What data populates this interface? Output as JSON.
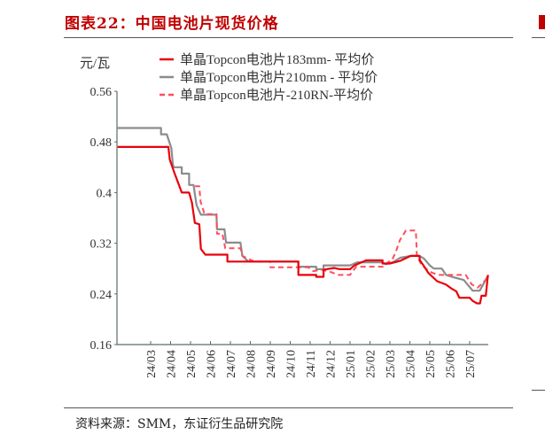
{
  "header": {
    "title": "图表22：中国电池片现货价格"
  },
  "footer": {
    "source": "资料来源：SMM，东证衍生品研究院"
  },
  "chart_data": {
    "type": "line",
    "title": "中国电池片现货价格",
    "ylabel": "元/瓦",
    "xlabel": "",
    "ylim": [
      0.16,
      0.56
    ],
    "yticks": [
      "0.56",
      "0.48",
      "0.4",
      "0.32",
      "0.24",
      "0.16"
    ],
    "ytick_values": [
      0.56,
      0.48,
      0.4,
      0.32,
      0.24,
      0.16
    ],
    "xticks": [
      "24/03",
      "24/04",
      "24/05",
      "24/06",
      "24/07",
      "24/08",
      "24/09",
      "24/10",
      "24/11",
      "24/12",
      "25/01",
      "25/02",
      "25/03",
      "25/04",
      "25/05",
      "25/06",
      "25/07"
    ],
    "xlim": [
      -1.7,
      16.95
    ],
    "x_note": "x values are month index, 0 = 24/03",
    "grid": false,
    "legend_position": "top",
    "series": [
      {
        "name": "单晶Topcon电池片183mm- 平均价",
        "color": "#e8000b",
        "style": "solid",
        "points": [
          [
            -1.66,
            0.472
          ],
          [
            0.89,
            0.472
          ],
          [
            0.96,
            0.452
          ],
          [
            1.19,
            0.431
          ],
          [
            1.41,
            0.413
          ],
          [
            1.56,
            0.4
          ],
          [
            1.93,
            0.4
          ],
          [
            2.07,
            0.384
          ],
          [
            2.22,
            0.352
          ],
          [
            2.44,
            0.35
          ],
          [
            2.52,
            0.311
          ],
          [
            2.74,
            0.302
          ],
          [
            3.85,
            0.302
          ],
          [
            3.85,
            0.291
          ],
          [
            7.41,
            0.291
          ],
          [
            7.41,
            0.27
          ],
          [
            8.3,
            0.27
          ],
          [
            8.3,
            0.267
          ],
          [
            8.67,
            0.267
          ],
          [
            8.67,
            0.278
          ],
          [
            9.19,
            0.281
          ],
          [
            9.48,
            0.279
          ],
          [
            10.0,
            0.279
          ],
          [
            10.22,
            0.285
          ],
          [
            10.81,
            0.293
          ],
          [
            11.63,
            0.293
          ],
          [
            11.63,
            0.288
          ],
          [
            12.0,
            0.288
          ],
          [
            12.5,
            0.292
          ],
          [
            13.04,
            0.3
          ],
          [
            13.48,
            0.3
          ],
          [
            13.5,
            0.293
          ],
          [
            13.7,
            0.284
          ],
          [
            13.93,
            0.273
          ],
          [
            14.37,
            0.26
          ],
          [
            14.8,
            0.255
          ],
          [
            15.11,
            0.248
          ],
          [
            15.33,
            0.244
          ],
          [
            15.48,
            0.234
          ],
          [
            16.0,
            0.234
          ],
          [
            16.15,
            0.229
          ],
          [
            16.37,
            0.225
          ],
          [
            16.52,
            0.225
          ],
          [
            16.59,
            0.237
          ],
          [
            16.81,
            0.237
          ],
          [
            16.89,
            0.262
          ],
          [
            16.92,
            0.27
          ]
        ]
      },
      {
        "name": "单晶Topcon电池片210mm - 平均价",
        "color": "#8c8c8c",
        "style": "solid",
        "points": [
          [
            -1.66,
            0.502
          ],
          [
            0.52,
            0.502
          ],
          [
            0.52,
            0.492
          ],
          [
            0.81,
            0.492
          ],
          [
            1.04,
            0.47
          ],
          [
            1.11,
            0.445
          ],
          [
            1.15,
            0.44
          ],
          [
            1.56,
            0.44
          ],
          [
            1.56,
            0.43
          ],
          [
            1.93,
            0.43
          ],
          [
            1.93,
            0.412
          ],
          [
            2.15,
            0.412
          ],
          [
            2.3,
            0.38
          ],
          [
            2.52,
            0.365
          ],
          [
            3.3,
            0.365
          ],
          [
            3.33,
            0.342
          ],
          [
            3.7,
            0.342
          ],
          [
            3.78,
            0.321
          ],
          [
            4.5,
            0.321
          ],
          [
            4.6,
            0.3
          ],
          [
            4.9,
            0.291
          ],
          [
            7.41,
            0.291
          ],
          [
            7.41,
            0.283
          ],
          [
            8.3,
            0.283
          ],
          [
            8.3,
            0.279
          ],
          [
            8.67,
            0.279
          ],
          [
            8.67,
            0.285
          ],
          [
            10.0,
            0.285
          ],
          [
            10.37,
            0.29
          ],
          [
            11.6,
            0.29
          ],
          [
            11.8,
            0.287
          ],
          [
            12.15,
            0.29
          ],
          [
            12.52,
            0.297
          ],
          [
            13.04,
            0.3
          ],
          [
            13.48,
            0.3
          ],
          [
            13.7,
            0.296
          ],
          [
            14.0,
            0.285
          ],
          [
            14.2,
            0.28
          ],
          [
            14.6,
            0.28
          ],
          [
            14.82,
            0.27
          ],
          [
            15.1,
            0.267
          ],
          [
            15.7,
            0.262
          ],
          [
            16.15,
            0.245
          ],
          [
            16.5,
            0.245
          ],
          [
            16.9,
            0.268
          ]
        ]
      },
      {
        "name": "单晶Topcon电池片-210RN-平均价",
        "color": "#ff4d5e",
        "style": "dashed",
        "points": [
          [
            2.22,
            0.41
          ],
          [
            2.44,
            0.41
          ],
          [
            2.5,
            0.386
          ],
          [
            2.7,
            0.366
          ],
          [
            3.3,
            0.366
          ],
          [
            3.33,
            0.335
          ],
          [
            3.6,
            0.335
          ],
          [
            3.74,
            0.312
          ],
          [
            4.5,
            0.312
          ],
          [
            4.6,
            0.3
          ],
          [
            5.2,
            0.291
          ],
          [
            6.0,
            0.291
          ],
          [
            6.0,
            0.282
          ],
          [
            7.9,
            0.282
          ],
          [
            8.15,
            0.276
          ],
          [
            8.6,
            0.278
          ],
          [
            9.0,
            0.275
          ],
          [
            9.4,
            0.27
          ],
          [
            10.0,
            0.27
          ],
          [
            10.15,
            0.276
          ],
          [
            10.3,
            0.283
          ],
          [
            11.7,
            0.283
          ],
          [
            11.9,
            0.29
          ],
          [
            12.1,
            0.293
          ],
          [
            12.3,
            0.307
          ],
          [
            12.5,
            0.325
          ],
          [
            12.8,
            0.34
          ],
          [
            13.3,
            0.34
          ],
          [
            13.35,
            0.3
          ],
          [
            13.6,
            0.285
          ],
          [
            14.0,
            0.275
          ],
          [
            14.4,
            0.27
          ],
          [
            15.8,
            0.27
          ],
          [
            16.1,
            0.255
          ],
          [
            16.4,
            0.25
          ],
          [
            16.9,
            0.265
          ]
        ]
      }
    ]
  }
}
